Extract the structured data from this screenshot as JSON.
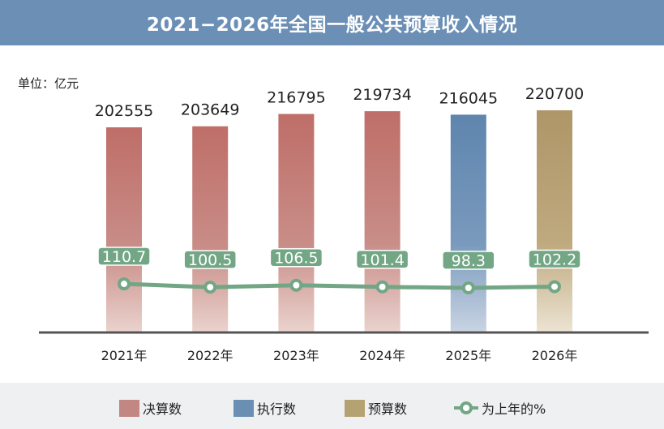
{
  "title": "2021−2026年全国一般公共预算收入情况",
  "unit": "单位：亿元",
  "chart_data": {
    "type": "bar",
    "title": "2021−2026年全国一般公共预算收入情况",
    "categories": [
      "2021年",
      "2022年",
      "2023年",
      "2024年",
      "2025年",
      "2026年"
    ],
    "values": [
      202555,
      203649,
      216795,
      219734,
      216045,
      220700
    ],
    "value_labels": [
      "202555",
      "203649",
      "216795",
      "219734",
      "216045",
      "220700"
    ],
    "bar_types": [
      "决算数",
      "决算数",
      "决算数",
      "决算数",
      "执行数",
      "预算数"
    ],
    "line_series": {
      "name": "为上年的%",
      "values": [
        110.7,
        100.5,
        106.5,
        101.4,
        98.3,
        102.2
      ],
      "labels": [
        "110.7",
        "100.5",
        "106.5",
        "101.4",
        "98.3",
        "102.2"
      ]
    },
    "ylabel": "单位：亿元",
    "legend": [
      {
        "name": "决算数",
        "color": "#c28683"
      },
      {
        "name": "执行数",
        "color": "#6a8fb2"
      },
      {
        "name": "预算数",
        "color": "#b5a273"
      },
      {
        "name": "为上年的%",
        "color": "#72a685"
      }
    ],
    "legend_position": "bottom",
    "grid": false
  },
  "colors": {
    "决算数": "#bf6e68",
    "执行数": "#5f85ae",
    "预算数": "#ae9668",
    "line": "#72a685"
  }
}
